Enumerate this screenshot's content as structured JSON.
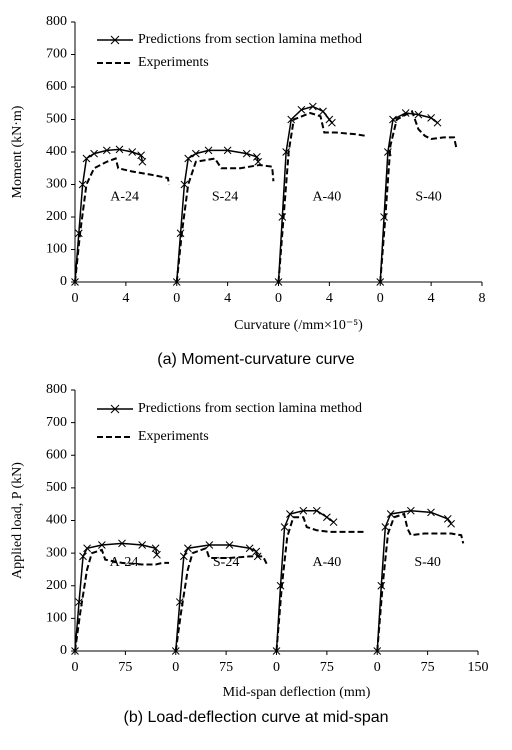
{
  "chart_data": [
    {
      "type": "line",
      "caption": "(a)  Moment-curvature curve",
      "xlabel": "Curvature  (/mm×10⁻⁵)",
      "ylabel": "Moment  (kN·m)",
      "xlim": [
        0,
        32
      ],
      "ylim": [
        0,
        800
      ],
      "xticks": [
        {
          "value": 0,
          "label": "0"
        },
        {
          "value": 4,
          "label": "4"
        },
        {
          "value": 8,
          "label": "0"
        },
        {
          "value": 12,
          "label": "4"
        },
        {
          "value": 16,
          "label": "0"
        },
        {
          "value": 20,
          "label": "4"
        },
        {
          "value": 24,
          "label": "0"
        },
        {
          "value": 28,
          "label": "4"
        },
        {
          "value": 32,
          "label": "8"
        }
      ],
      "yticks": [
        0,
        100,
        200,
        300,
        400,
        500,
        600,
        700,
        800
      ],
      "legend": "upper left",
      "series": [
        {
          "name": "Predictions from section lamina method",
          "color": "#000000",
          "line_style": "solid",
          "marker": "x",
          "x": [
            0,
            0.3,
            0.6,
            0.9,
            1.5,
            2.5,
            3.5,
            4.5,
            5.2,
            5.3,
            null,
            8,
            8.3,
            8.6,
            8.9,
            9.5,
            10.5,
            12,
            13.5,
            14.3,
            14.4,
            null,
            16,
            16.3,
            16.6,
            17,
            17.8,
            18.7,
            19.5,
            20,
            20.2,
            null,
            24,
            24.3,
            24.6,
            25,
            26,
            27,
            28,
            28.5
          ],
          "values": [
            0,
            150,
            300,
            380,
            395,
            405,
            408,
            400,
            390,
            370,
            null,
            0,
            150,
            300,
            380,
            395,
            405,
            405,
            395,
            385,
            370,
            null,
            0,
            200,
            400,
            500,
            530,
            540,
            525,
            500,
            490,
            null,
            0,
            200,
            400,
            500,
            520,
            515,
            505,
            490
          ]
        },
        {
          "name": "Experiments",
          "color": "#000000",
          "line_style": "dashed",
          "marker": "none",
          "x": [
            0,
            0.4,
            0.9,
            1.5,
            2.5,
            3.2,
            3.4,
            4.5,
            6,
            7.3,
            7.4,
            null,
            8,
            8.4,
            8.9,
            9.5,
            11,
            11.5,
            13,
            14.5,
            15.5,
            15.6,
            null,
            16,
            16.4,
            16.8,
            17.2,
            18.5,
            19.3,
            19.6,
            20.5,
            22,
            22.8,
            null,
            24,
            24.4,
            24.8,
            25.3,
            26.5,
            27,
            27.5,
            28,
            29,
            29.8,
            30
          ],
          "values": [
            0,
            150,
            300,
            350,
            370,
            380,
            350,
            340,
            330,
            320,
            300,
            null,
            0,
            150,
            300,
            370,
            380,
            350,
            350,
            360,
            355,
            310,
            null,
            0,
            200,
            400,
            500,
            520,
            510,
            460,
            460,
            455,
            450,
            null,
            0,
            200,
            420,
            500,
            525,
            470,
            450,
            440,
            445,
            445,
            410
          ]
        }
      ],
      "annotations": [
        {
          "text": "A-24",
          "x": 3.9,
          "y": 260
        },
        {
          "text": "S-24",
          "x": 11.8,
          "y": 260
        },
        {
          "text": "A-40",
          "x": 19.8,
          "y": 260
        },
        {
          "text": "S-40",
          "x": 27.8,
          "y": 260
        }
      ]
    },
    {
      "type": "line",
      "caption": "(b)  Load-deflection curve at mid-span",
      "xlabel": "Mid-span deflection (mm)",
      "ylabel": "Applied load, P (kN)",
      "xlim": [
        0,
        600
      ],
      "ylim": [
        0,
        800
      ],
      "xticks": [
        {
          "value": 0,
          "label": "0"
        },
        {
          "value": 75,
          "label": "75"
        },
        {
          "value": 150,
          "label": "0"
        },
        {
          "value": 225,
          "label": "75"
        },
        {
          "value": 300,
          "label": "0"
        },
        {
          "value": 375,
          "label": "75"
        },
        {
          "value": 450,
          "label": "0"
        },
        {
          "value": 525,
          "label": "75"
        },
        {
          "value": 600,
          "label": "150"
        }
      ],
      "yticks": [
        0,
        100,
        200,
        300,
        400,
        500,
        600,
        700,
        800
      ],
      "legend": "upper left",
      "series": [
        {
          "name": "Predictions from section lamina method",
          "color": "#000000",
          "line_style": "solid",
          "marker": "x",
          "x": [
            0,
            6,
            12,
            18,
            40,
            70,
            100,
            120,
            122,
            null,
            150,
            156,
            162,
            168,
            200,
            230,
            260,
            270,
            272,
            null,
            300,
            306,
            312,
            320,
            340,
            360,
            375,
            385,
            null,
            450,
            456,
            462,
            470,
            500,
            530,
            555,
            560
          ],
          "values": [
            0,
            150,
            290,
            315,
            325,
            330,
            325,
            315,
            295,
            null,
            0,
            150,
            290,
            315,
            325,
            325,
            315,
            305,
            290,
            null,
            0,
            200,
            380,
            420,
            430,
            430,
            410,
            395,
            null,
            0,
            200,
            380,
            420,
            430,
            425,
            405,
            390
          ]
        },
        {
          "name": "Experiments",
          "color": "#000000",
          "line_style": "dashed",
          "marker": "none",
          "x": [
            0,
            8,
            18,
            25,
            40,
            45,
            70,
            100,
            120,
            130,
            140,
            null,
            150,
            158,
            168,
            175,
            195,
            200,
            230,
            260,
            280,
            287,
            null,
            300,
            308,
            316,
            325,
            340,
            345,
            360,
            380,
            410,
            430,
            null,
            450,
            458,
            466,
            475,
            490,
            495,
            500,
            520,
            560,
            575,
            578
          ],
          "values": [
            0,
            120,
            250,
            300,
            310,
            280,
            270,
            265,
            265,
            270,
            270,
            null,
            0,
            120,
            250,
            300,
            315,
            285,
            285,
            290,
            290,
            260,
            null,
            0,
            200,
            350,
            410,
            410,
            380,
            370,
            365,
            365,
            365,
            null,
            0,
            200,
            360,
            410,
            420,
            375,
            355,
            360,
            360,
            355,
            330
          ]
        }
      ],
      "annotations": [
        {
          "text": "A-24",
          "x": 73,
          "y": 270
        },
        {
          "text": "S-24",
          "x": 225,
          "y": 270
        },
        {
          "text": "A-40",
          "x": 375,
          "y": 270
        },
        {
          "text": "S-40",
          "x": 525,
          "y": 270
        }
      ]
    }
  ]
}
